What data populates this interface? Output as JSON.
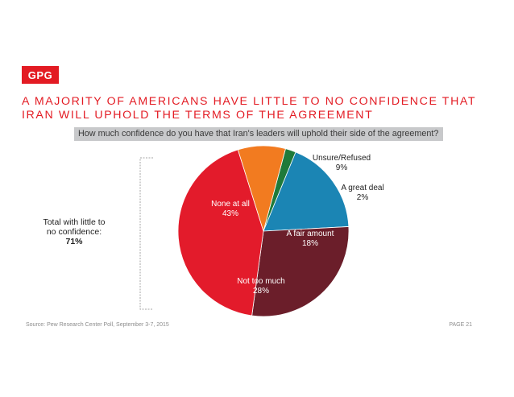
{
  "logo": {
    "text": "GPG"
  },
  "headline": {
    "line1": "A MAJORITY OF AMERICANS HAVE LITTLE TO NO CONFIDENCE THAT",
    "line2": "IRAN WILL UPHOLD THE TERMS OF THE AGREEMENT"
  },
  "question": "How much confidence do you have that Iran's leaders will uphold their side of the agreement?",
  "side_note": {
    "line1": "Total with little to",
    "line2": "no confidence:",
    "value": "71%"
  },
  "footer": {
    "source": "Source: Pew Research Center Poll, September 3-7, 2015",
    "page": "PAGE 21"
  },
  "colors": {
    "brand_red": "#e31b23",
    "question_bg": "#c8c9cb",
    "headline_text": "#e31b23"
  },
  "chart_data": {
    "type": "pie",
    "slices": [
      {
        "label": "A great deal",
        "value": 2,
        "value_label": "2%",
        "color": "#1f7a3a"
      },
      {
        "label": "A fair amount",
        "value": 18,
        "value_label": "18%",
        "color": "#1b85b4"
      },
      {
        "label": "Not too much",
        "value": 28,
        "value_label": "28%",
        "color": "#6b1e2a"
      },
      {
        "label": "None at all",
        "value": 43,
        "value_label": "43%",
        "color": "#e31b2b"
      },
      {
        "label": "Unsure/Refused",
        "value": 9,
        "value_label": "9%",
        "color": "#f27b20"
      }
    ]
  }
}
